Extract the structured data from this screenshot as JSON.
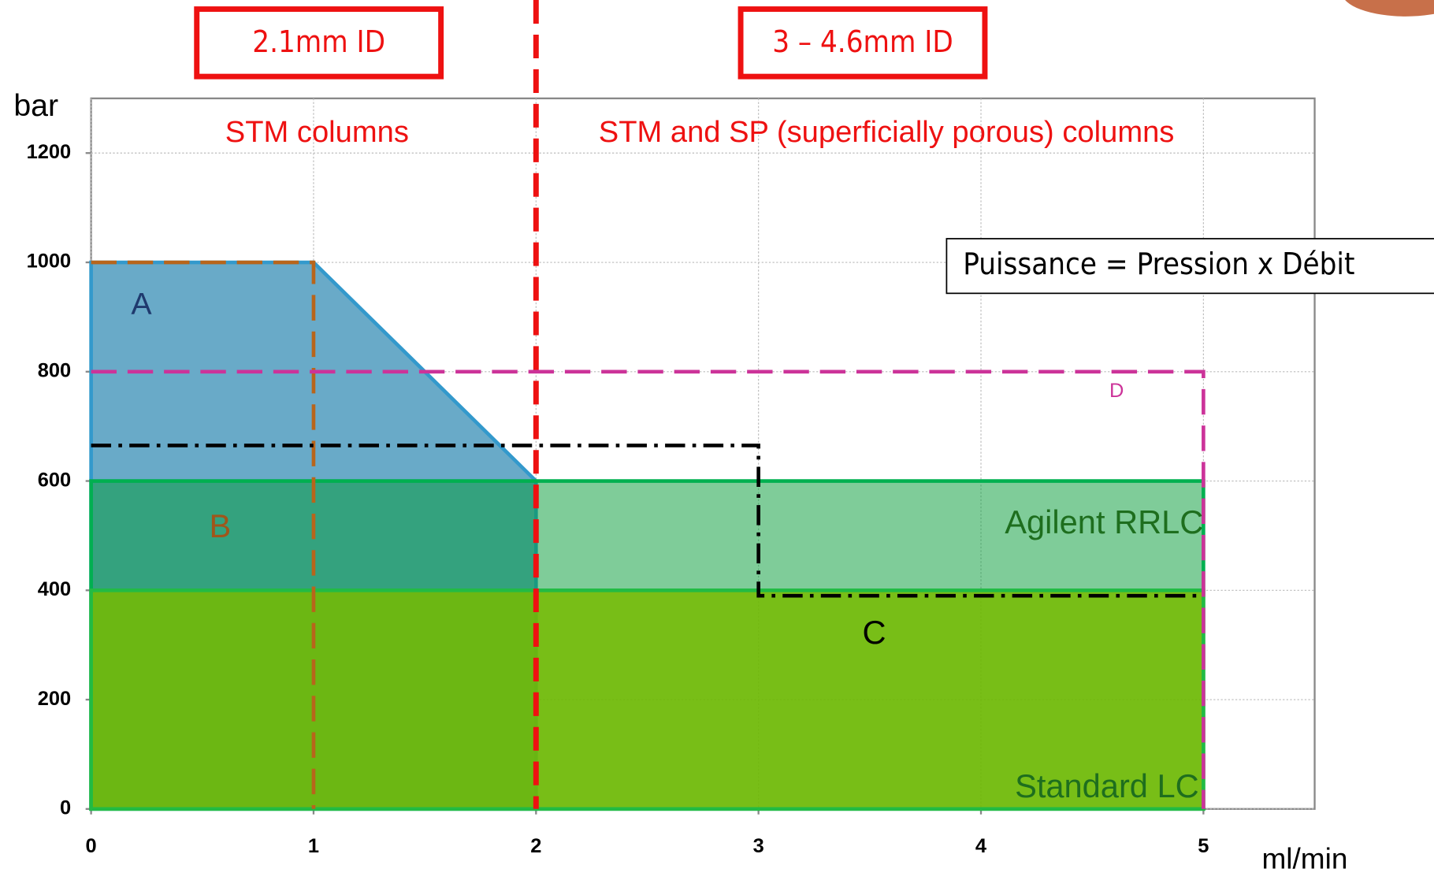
{
  "chart_data": {
    "type": "envelope",
    "x_label": "ml/min",
    "y_label": "bar",
    "xlim": [
      0,
      5.5
    ],
    "ylim": [
      0,
      1300
    ],
    "xticks": [
      0,
      1,
      2,
      3,
      4,
      5
    ],
    "yticks": [
      0,
      200,
      400,
      600,
      800,
      1000,
      1200
    ],
    "grid": true,
    "divider": {
      "x": 2,
      "color": "#ee1111"
    },
    "regions": [
      {
        "label": "STM columns",
        "id_label": "2.1mm ID"
      },
      {
        "label": "STM and SP (superficially porous) columns",
        "id_label": "3 – 4.6mm ID"
      }
    ],
    "note": "Puissance = Pression x Débit",
    "series": [
      {
        "name": "A",
        "color": "#3399cc",
        "fill": "#69aac8",
        "style": "solid",
        "label_color": "#1f3a6e",
        "x": [
          0,
          0,
          1,
          2,
          2
        ],
        "values": [
          0,
          1000,
          1000,
          600,
          0
        ]
      },
      {
        "name": "Agilent RRLC",
        "color": "#00b050",
        "fill": "#009933",
        "style": "solid",
        "label_color": "#1e6e1e",
        "x": [
          0,
          0,
          5,
          5
        ],
        "values": [
          0,
          600,
          600,
          0
        ]
      },
      {
        "name": "Standard LC",
        "color": "#22bb44",
        "fill": "#77bb00",
        "style": "solid",
        "label_color": "#1e6e1e",
        "x": [
          0,
          0,
          5,
          5
        ],
        "values": [
          0,
          400,
          400,
          0
        ]
      },
      {
        "name": "B",
        "color": "#b8651b",
        "fill": null,
        "style": "dash",
        "label_color": "#a0561a",
        "x": [
          0,
          1,
          1
        ],
        "values": [
          1000,
          1000,
          0
        ]
      },
      {
        "name": "C",
        "color": "#000000",
        "fill": null,
        "style": "dashdot",
        "label_color": "#000000",
        "x": [
          0,
          3,
          3,
          5
        ],
        "values": [
          665,
          665,
          390,
          390
        ]
      },
      {
        "name": "D",
        "color": "#cc3399",
        "fill": null,
        "style": "dash",
        "label_color": "#cc3399",
        "x": [
          0,
          5,
          5
        ],
        "values": [
          800,
          800,
          0
        ]
      }
    ]
  }
}
